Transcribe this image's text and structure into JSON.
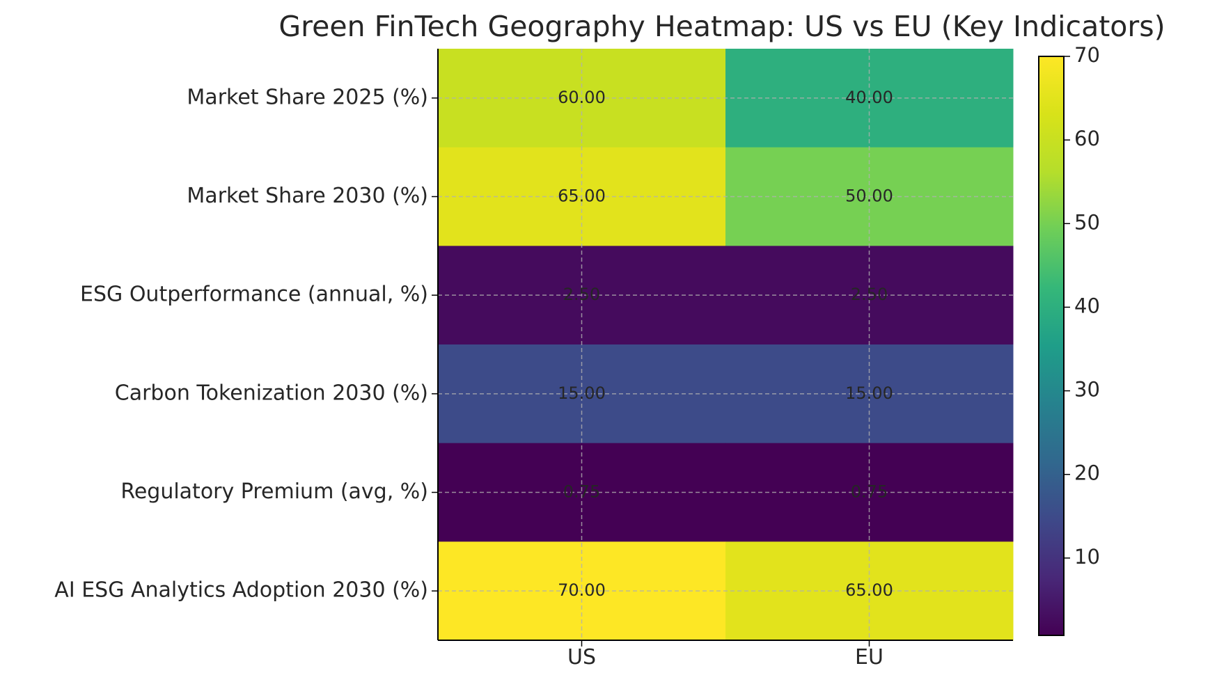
{
  "chart_data": {
    "type": "heatmap",
    "title": "Green FinTech Geography Heatmap: US vs EU (Key Indicators)",
    "columns": [
      "US",
      "EU"
    ],
    "rows": [
      "Market Share 2025 (%)",
      "Market Share 2030 (%)",
      "ESG Outperformance (annual, %)",
      "Carbon Tokenization 2030 (%)",
      "Regulatory Premium (avg, %)",
      "AI ESG Analytics Adoption 2030 (%)"
    ],
    "values": [
      [
        60.0,
        40.0
      ],
      [
        65.0,
        50.0
      ],
      [
        2.5,
        2.5
      ],
      [
        15.0,
        15.0
      ],
      [
        0.75,
        0.75
      ],
      [
        70.0,
        65.0
      ]
    ],
    "cell_labels": [
      [
        "60.00",
        "40.00"
      ],
      [
        "65.00",
        "50.00"
      ],
      [
        "2.50",
        "2.50"
      ],
      [
        "15.00",
        "15.00"
      ],
      [
        "0.75",
        "0.75"
      ],
      [
        "70.00",
        "65.00"
      ]
    ],
    "colormap": "viridis",
    "vmin": 0.75,
    "vmax": 70,
    "colorbar_ticks": [
      10,
      20,
      30,
      40,
      50,
      60,
      70
    ],
    "colorbar_tick_labels": [
      "10",
      "20",
      "30",
      "40",
      "50",
      "60",
      "70"
    ],
    "grid": true
  }
}
